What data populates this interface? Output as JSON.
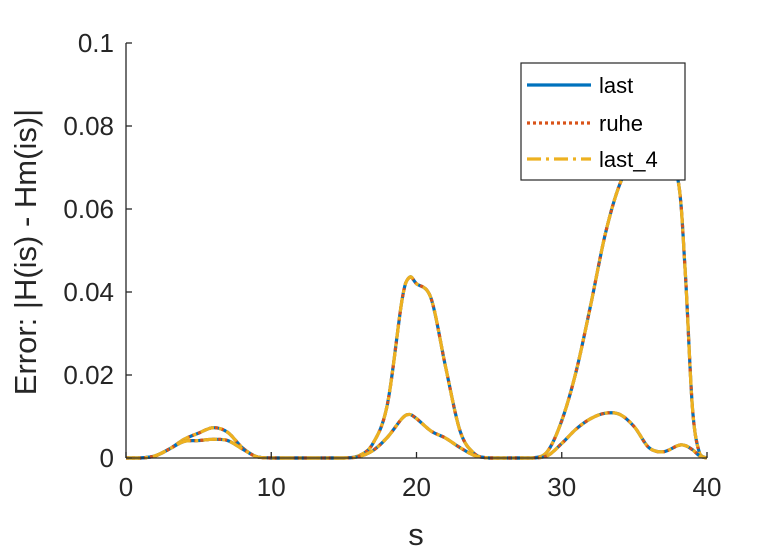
{
  "chart_data": {
    "type": "line",
    "xlabel": "s",
    "ylabel": "Error: |H(is) - Hm(is)|",
    "xlim": [
      0,
      40
    ],
    "ylim": [
      0,
      0.1
    ],
    "xticks": [
      "0",
      "10",
      "20",
      "30",
      "40"
    ],
    "yticks": [
      "0",
      "0.02",
      "0.04",
      "0.06",
      "0.08",
      "0.1"
    ],
    "grid": false,
    "legend_position": "top-right",
    "legend": [
      "last",
      "ruhe",
      "last_4"
    ],
    "colors": {
      "last": "#0072BD",
      "ruhe": "#D95319",
      "last_4": "#EDB120"
    },
    "x": [
      0,
      1,
      2,
      3,
      4,
      5,
      6,
      7,
      8,
      9,
      10,
      11,
      12,
      13,
      14,
      15,
      16,
      17,
      18,
      19,
      19.5,
      20,
      21,
      22,
      23,
      24,
      25,
      26,
      27,
      28,
      29,
      30,
      31,
      32,
      33,
      34,
      35,
      36,
      37,
      38,
      38.5,
      39,
      39.5,
      40
    ],
    "series": [
      {
        "name": "last",
        "group": "upper",
        "values": [
          0,
          0,
          0.0005,
          0.0022,
          0.0045,
          0.006,
          0.0073,
          0.0062,
          0.0025,
          0.0003,
          0,
          0,
          0,
          0,
          0,
          0,
          0.0005,
          0.0035,
          0.013,
          0.038,
          0.0435,
          0.042,
          0.0385,
          0.022,
          0.0065,
          0.001,
          0,
          0,
          0,
          0,
          0.0015,
          0.009,
          0.021,
          0.037,
          0.054,
          0.066,
          0.072,
          0.073,
          0.072,
          0.067,
          0.045,
          0.012,
          0.001,
          0
        ]
      },
      {
        "name": "ruhe",
        "group": "upper",
        "values": [
          0,
          0,
          0.0005,
          0.0022,
          0.0045,
          0.006,
          0.0073,
          0.0062,
          0.0025,
          0.0003,
          0,
          0,
          0,
          0,
          0,
          0,
          0.0005,
          0.0035,
          0.013,
          0.038,
          0.0435,
          0.042,
          0.0385,
          0.022,
          0.0065,
          0.001,
          0,
          0,
          0,
          0,
          0.0015,
          0.009,
          0.021,
          0.037,
          0.054,
          0.066,
          0.072,
          0.073,
          0.072,
          0.067,
          0.045,
          0.012,
          0.001,
          0
        ]
      },
      {
        "name": "last_4",
        "group": "upper",
        "values": [
          0,
          0,
          0.0005,
          0.0022,
          0.0045,
          0.006,
          0.0073,
          0.0062,
          0.0025,
          0.0003,
          0,
          0,
          0,
          0,
          0,
          0,
          0.0005,
          0.0035,
          0.013,
          0.038,
          0.0435,
          0.042,
          0.0385,
          0.022,
          0.0065,
          0.001,
          0,
          0,
          0,
          0,
          0.0015,
          0.009,
          0.021,
          0.037,
          0.054,
          0.066,
          0.072,
          0.073,
          0.072,
          0.067,
          0.045,
          0.012,
          0.001,
          0
        ]
      },
      {
        "name": "last",
        "group": "lower",
        "values": [
          0,
          0,
          0.0005,
          0.0022,
          0.004,
          0.0042,
          0.0045,
          0.0042,
          0.0022,
          0.0003,
          0,
          0,
          0,
          0,
          0,
          0,
          0.0003,
          0.0018,
          0.005,
          0.0095,
          0.0105,
          0.0095,
          0.0065,
          0.0048,
          0.0025,
          0.0006,
          0,
          0,
          0,
          0,
          0.0005,
          0.0035,
          0.007,
          0.0095,
          0.0108,
          0.0105,
          0.0075,
          0.0025,
          0.0015,
          0.003,
          0.003,
          0.002,
          0.0005,
          0
        ]
      },
      {
        "name": "ruhe",
        "group": "lower",
        "values": [
          0,
          0,
          0.0005,
          0.0022,
          0.004,
          0.0042,
          0.0045,
          0.0042,
          0.0022,
          0.0003,
          0,
          0,
          0,
          0,
          0,
          0,
          0.0003,
          0.0018,
          0.005,
          0.0095,
          0.0105,
          0.0095,
          0.0065,
          0.0048,
          0.0025,
          0.0006,
          0,
          0,
          0,
          0,
          0.0005,
          0.0035,
          0.007,
          0.0095,
          0.0108,
          0.0105,
          0.0075,
          0.0025,
          0.0015,
          0.003,
          0.003,
          0.002,
          0.0005,
          0
        ]
      },
      {
        "name": "last_4",
        "group": "lower",
        "values": [
          0,
          0,
          0.0005,
          0.0022,
          0.004,
          0.0042,
          0.0045,
          0.0042,
          0.0022,
          0.0003,
          0,
          0,
          0,
          0,
          0,
          0,
          0.0003,
          0.0018,
          0.005,
          0.0095,
          0.0105,
          0.0095,
          0.0065,
          0.0048,
          0.0025,
          0.0006,
          0,
          0,
          0,
          0,
          0.0005,
          0.0035,
          0.007,
          0.0095,
          0.0108,
          0.0105,
          0.0075,
          0.0025,
          0.0015,
          0.003,
          0.003,
          0.002,
          0.0005,
          0
        ]
      }
    ]
  }
}
